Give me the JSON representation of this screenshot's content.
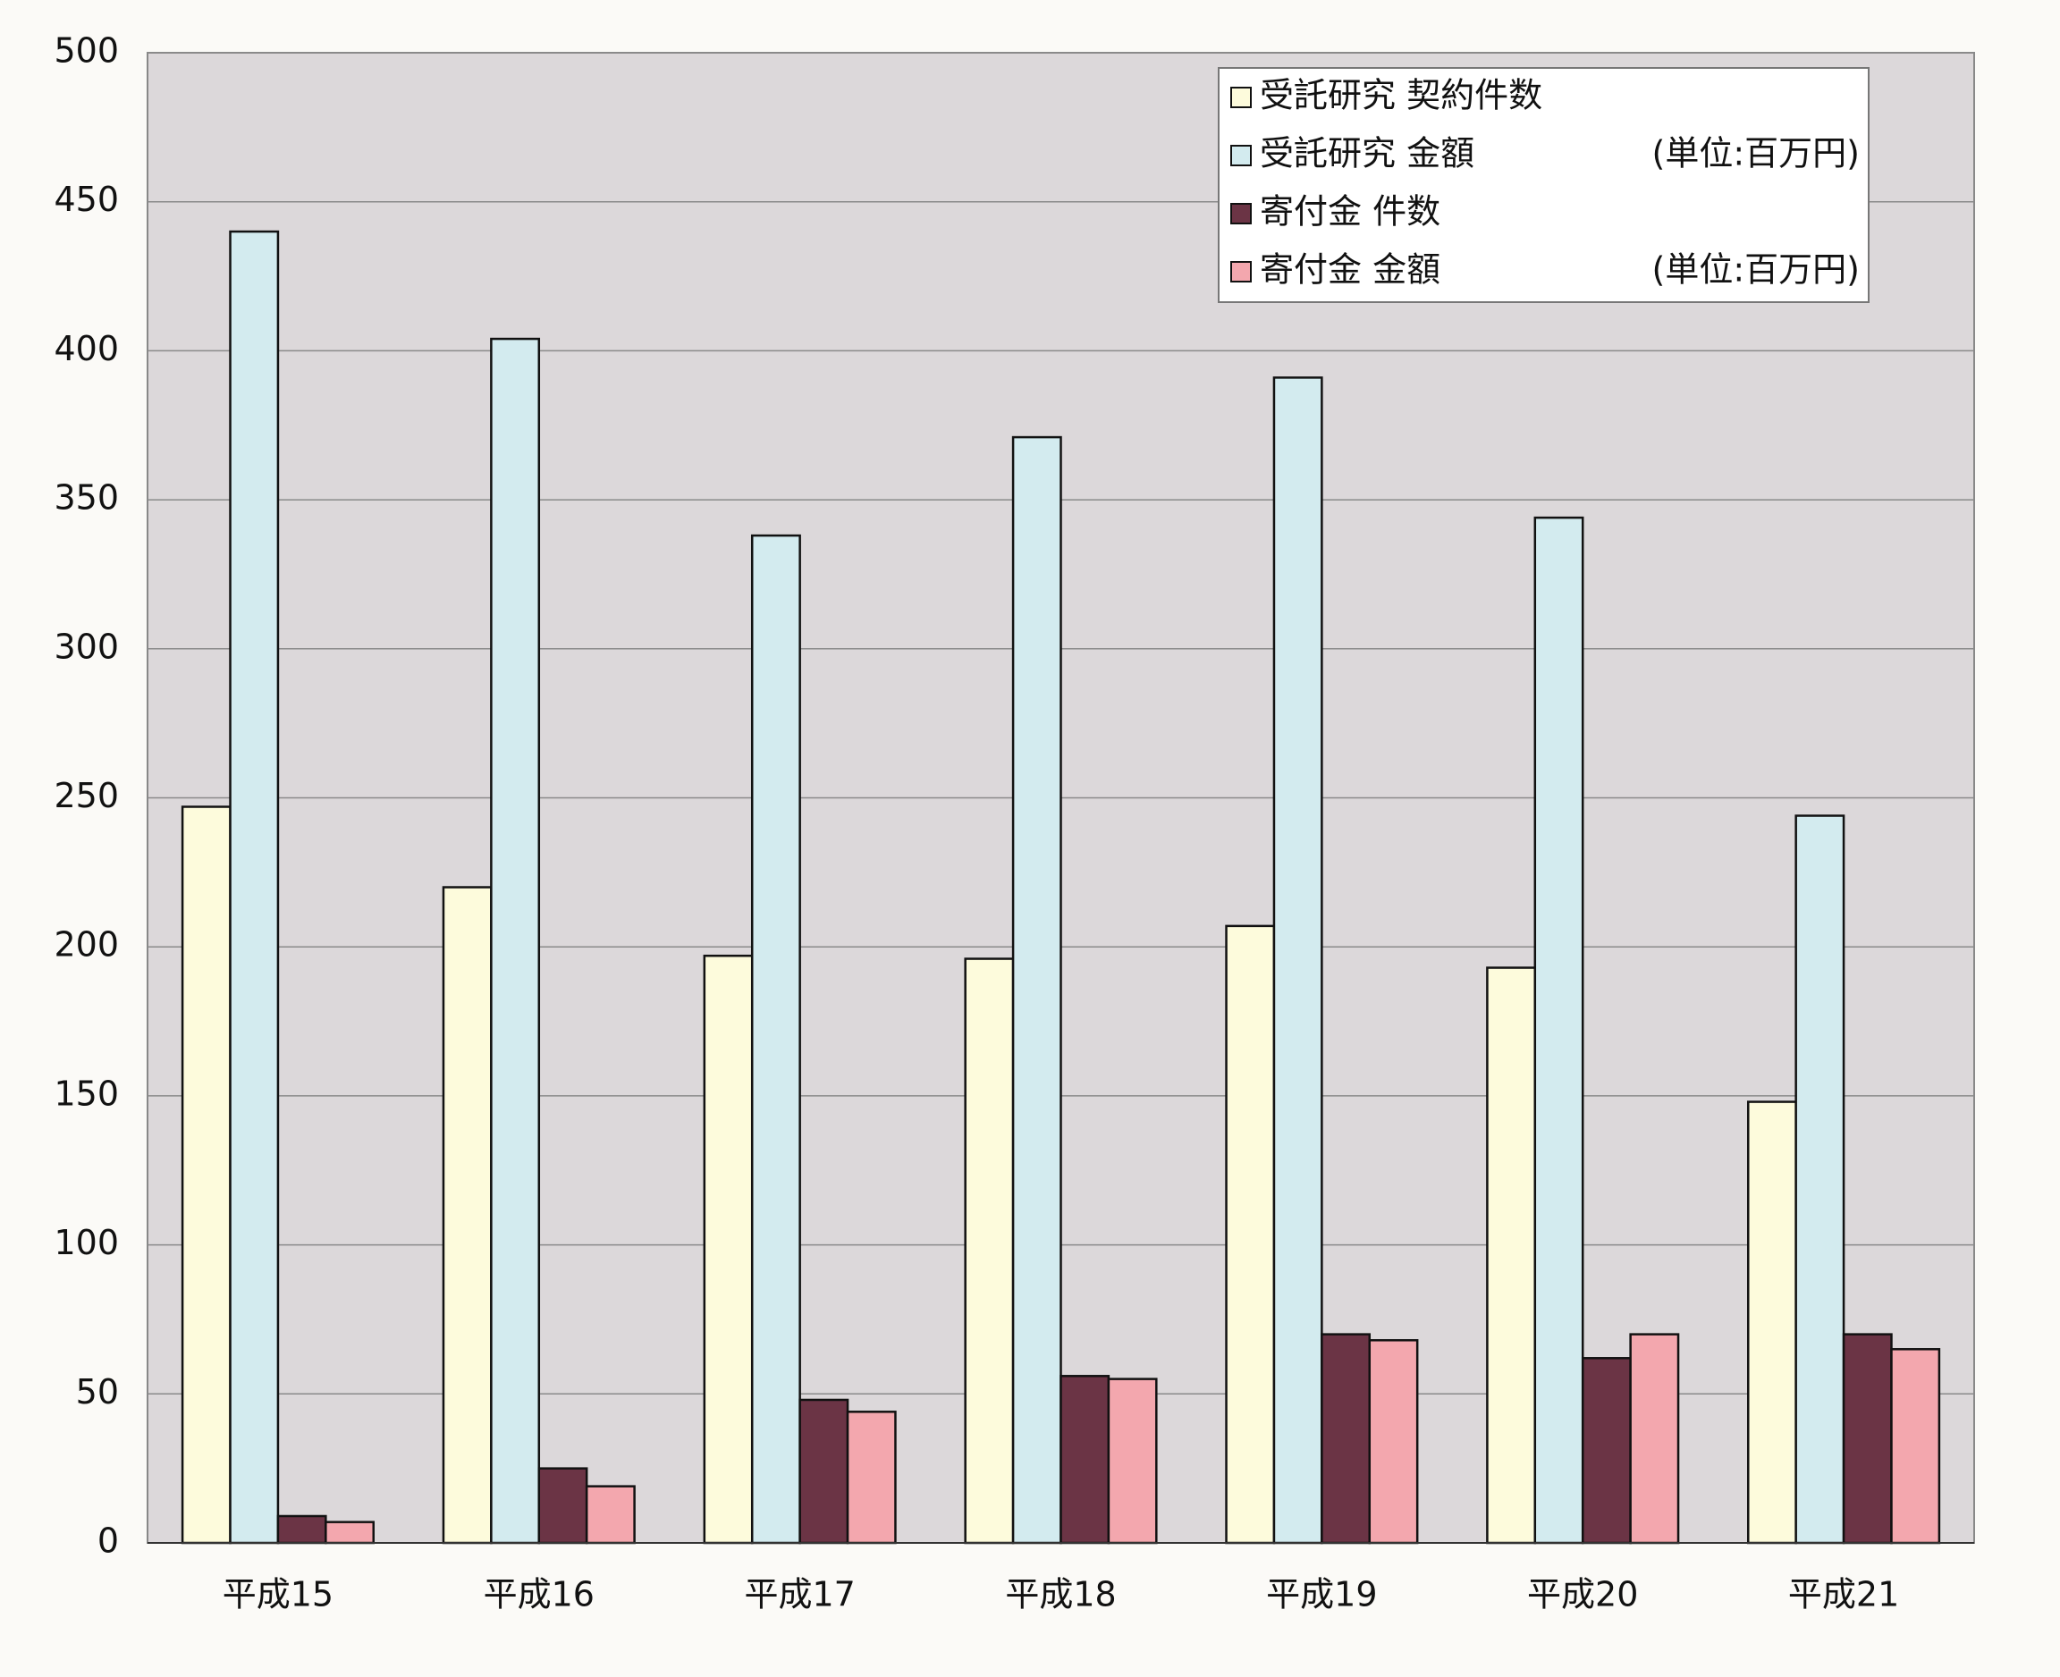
{
  "chart_data": {
    "type": "bar",
    "categories": [
      "平成15",
      "平成16",
      "平成17",
      "平成18",
      "平成19",
      "平成20",
      "平成21"
    ],
    "series": [
      {
        "name": "受託研究 契約件数",
        "color": "#fdfbdc",
        "values": [
          247,
          220,
          197,
          196,
          207,
          193,
          148
        ]
      },
      {
        "name": "受託研究 金額",
        "note": "(単位:百万円)",
        "color": "#d3ebef",
        "values": [
          440,
          404,
          338,
          371,
          391,
          344,
          244
        ]
      },
      {
        "name": "寄付金 件数",
        "color": "#6b3445",
        "values": [
          9,
          25,
          48,
          56,
          70,
          62,
          70
        ]
      },
      {
        "name": "寄付金 金額",
        "note": "(単位:百万円)",
        "color": "#f3a7ae",
        "values": [
          7,
          19,
          44,
          55,
          68,
          70,
          65
        ]
      }
    ],
    "ylim": [
      0,
      500
    ],
    "yticks": [
      0,
      50,
      100,
      150,
      200,
      250,
      300,
      350,
      400,
      450,
      500
    ],
    "grid": true,
    "legend": "top-right"
  }
}
